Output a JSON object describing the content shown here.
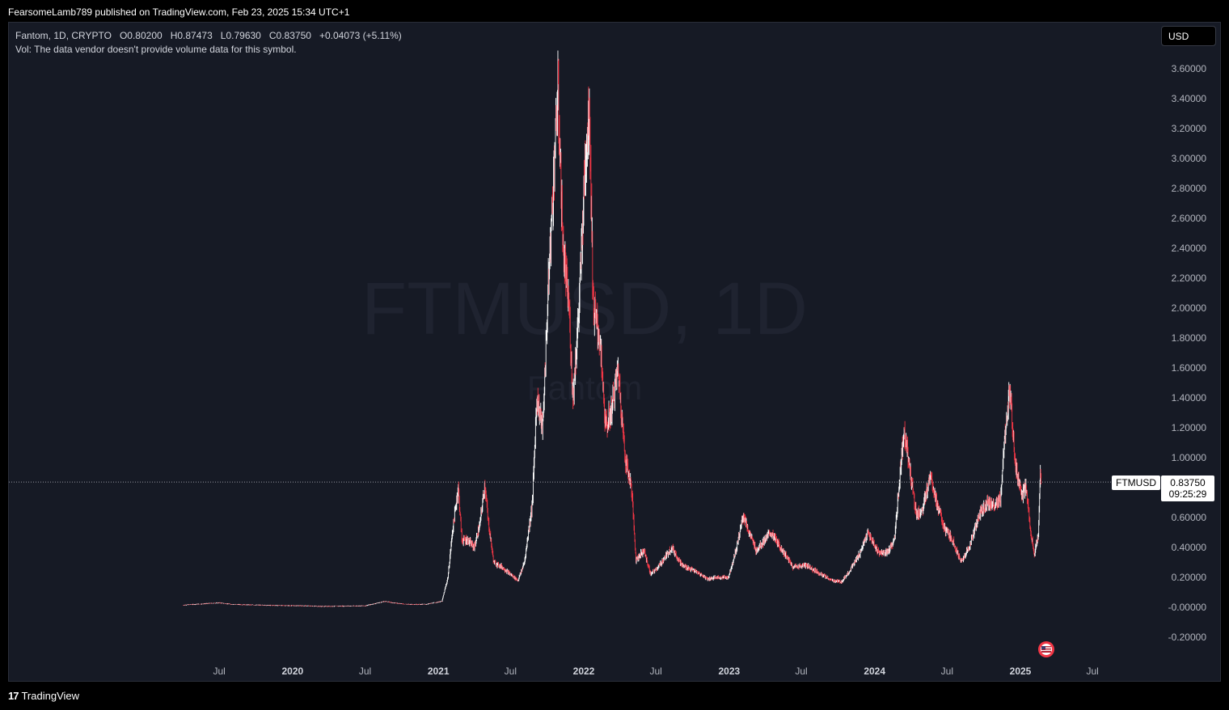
{
  "header": {
    "published": "FearsomeLamb789 published on TradingView.com, Feb 23, 2025 15:34 UTC+1"
  },
  "legend": {
    "symbol_line": "Fantom, 1D, CRYPTO",
    "open_label": "O",
    "open": "0.80200",
    "high_label": "H",
    "high": "0.87473",
    "low_label": "L",
    "low": "0.79630",
    "close_label": "C",
    "close": "0.83750",
    "change": "+0.04073 (+5.11%)",
    "vol_note": "Vol: The data vendor doesn't provide volume data for this symbol."
  },
  "currency_button": "USD",
  "watermark": {
    "line1": "FTMUSD, 1D",
    "line2": "Fantom"
  },
  "price_tag": {
    "symbol": "FTMUSD",
    "price": "0.83750",
    "countdown": "09:25:29"
  },
  "footer": {
    "brand": "TradingView",
    "logo_mark": "17"
  },
  "colors": {
    "background": "#161a25",
    "up": "#ffffff",
    "down": "#f23645",
    "axis_text": "#b2b5be",
    "price_line": "#9598a1"
  },
  "chart_data": {
    "type": "line",
    "title": "",
    "xlabel": "",
    "ylabel": "",
    "x_ticks": [
      {
        "date": "2019-07",
        "label": "Jul"
      },
      {
        "date": "2020-01",
        "label": "2020"
      },
      {
        "date": "2020-07",
        "label": "Jul"
      },
      {
        "date": "2021-01",
        "label": "2021"
      },
      {
        "date": "2021-07",
        "label": "Jul"
      },
      {
        "date": "2022-01",
        "label": "2022"
      },
      {
        "date": "2022-07",
        "label": "Jul"
      },
      {
        "date": "2023-01",
        "label": "2023"
      },
      {
        "date": "2023-07",
        "label": "Jul"
      },
      {
        "date": "2024-01",
        "label": "2024"
      },
      {
        "date": "2024-07",
        "label": "Jul"
      },
      {
        "date": "2025-01",
        "label": "2025"
      },
      {
        "date": "2025-07",
        "label": "Jul"
      }
    ],
    "y_ticks": [
      "3.60000",
      "3.40000",
      "3.20000",
      "3.00000",
      "2.80000",
      "2.60000",
      "2.40000",
      "2.20000",
      "2.00000",
      "1.80000",
      "1.60000",
      "1.40000",
      "1.20000",
      "1.00000",
      "0.60000",
      "0.40000",
      "0.20000",
      "-0.00000",
      "-0.20000"
    ],
    "ylim": [
      -0.3,
      3.7
    ],
    "last_price": 0.8375,
    "series": [
      {
        "values": [
          [
            "2019-04-01",
            0.015
          ],
          [
            "2019-05-01",
            0.02
          ],
          [
            "2019-06-01",
            0.025
          ],
          [
            "2019-07-01",
            0.03
          ],
          [
            "2019-08-01",
            0.02
          ],
          [
            "2019-10-01",
            0.015
          ],
          [
            "2019-12-01",
            0.012
          ],
          [
            "2020-02-01",
            0.01
          ],
          [
            "2020-03-15",
            0.006
          ],
          [
            "2020-05-01",
            0.008
          ],
          [
            "2020-07-01",
            0.01
          ],
          [
            "2020-08-20",
            0.04
          ],
          [
            "2020-09-10",
            0.03
          ],
          [
            "2020-10-15",
            0.02
          ],
          [
            "2020-12-01",
            0.02
          ],
          [
            "2021-01-10",
            0.04
          ],
          [
            "2021-01-25",
            0.2
          ],
          [
            "2021-02-05",
            0.5
          ],
          [
            "2021-02-20",
            0.8
          ],
          [
            "2021-03-01",
            0.45
          ],
          [
            "2021-03-15",
            0.45
          ],
          [
            "2021-04-01",
            0.4
          ],
          [
            "2021-04-15",
            0.55
          ],
          [
            "2021-04-28",
            0.83
          ],
          [
            "2021-05-05",
            0.6
          ],
          [
            "2021-05-20",
            0.3
          ],
          [
            "2021-06-10",
            0.27
          ],
          [
            "2021-07-01",
            0.22
          ],
          [
            "2021-07-20",
            0.18
          ],
          [
            "2021-08-05",
            0.3
          ],
          [
            "2021-08-25",
            0.7
          ],
          [
            "2021-09-05",
            1.4
          ],
          [
            "2021-09-20",
            1.2
          ],
          [
            "2021-10-05",
            2.2
          ],
          [
            "2021-10-28",
            3.46
          ],
          [
            "2021-11-10",
            2.4
          ],
          [
            "2021-11-25",
            2.0
          ],
          [
            "2021-12-05",
            1.4
          ],
          [
            "2021-12-20",
            2.0
          ],
          [
            "2022-01-05",
            3.0
          ],
          [
            "2022-01-15",
            3.35
          ],
          [
            "2022-01-25",
            2.0
          ],
          [
            "2022-02-10",
            1.8
          ],
          [
            "2022-02-25",
            1.2
          ],
          [
            "2022-03-10",
            1.3
          ],
          [
            "2022-03-28",
            1.6
          ],
          [
            "2022-04-15",
            1.0
          ],
          [
            "2022-05-01",
            0.8
          ],
          [
            "2022-05-12",
            0.32
          ],
          [
            "2022-06-01",
            0.38
          ],
          [
            "2022-06-18",
            0.22
          ],
          [
            "2022-07-10",
            0.28
          ],
          [
            "2022-08-10",
            0.4
          ],
          [
            "2022-09-05",
            0.28
          ],
          [
            "2022-10-01",
            0.25
          ],
          [
            "2022-11-09",
            0.19
          ],
          [
            "2022-12-01",
            0.2
          ],
          [
            "2022-12-30",
            0.2
          ],
          [
            "2023-01-20",
            0.4
          ],
          [
            "2023-02-05",
            0.62
          ],
          [
            "2023-02-20",
            0.5
          ],
          [
            "2023-03-10",
            0.38
          ],
          [
            "2023-04-15",
            0.5
          ],
          [
            "2023-05-20",
            0.36
          ],
          [
            "2023-06-10",
            0.27
          ],
          [
            "2023-07-15",
            0.28
          ],
          [
            "2023-08-20",
            0.22
          ],
          [
            "2023-09-15",
            0.18
          ],
          [
            "2023-10-10",
            0.17
          ],
          [
            "2023-11-01",
            0.25
          ],
          [
            "2023-11-25",
            0.36
          ],
          [
            "2023-12-15",
            0.5
          ],
          [
            "2024-01-10",
            0.37
          ],
          [
            "2024-02-01",
            0.36
          ],
          [
            "2024-02-20",
            0.45
          ],
          [
            "2024-03-05",
            0.9
          ],
          [
            "2024-03-15",
            1.2
          ],
          [
            "2024-03-28",
            0.95
          ],
          [
            "2024-04-15",
            0.62
          ],
          [
            "2024-05-01",
            0.65
          ],
          [
            "2024-05-20",
            0.9
          ],
          [
            "2024-06-05",
            0.7
          ],
          [
            "2024-06-25",
            0.52
          ],
          [
            "2024-07-15",
            0.45
          ],
          [
            "2024-08-05",
            0.3
          ],
          [
            "2024-08-25",
            0.4
          ],
          [
            "2024-09-20",
            0.62
          ],
          [
            "2024-10-10",
            0.7
          ],
          [
            "2024-10-30",
            0.68
          ],
          [
            "2024-11-12",
            0.72
          ],
          [
            "2024-11-25",
            1.2
          ],
          [
            "2024-12-05",
            1.44
          ],
          [
            "2024-12-20",
            0.95
          ],
          [
            "2025-01-05",
            0.75
          ],
          [
            "2025-01-15",
            0.8
          ],
          [
            "2025-01-25",
            0.55
          ],
          [
            "2025-02-05",
            0.35
          ],
          [
            "2025-02-15",
            0.48
          ],
          [
            "2025-02-20",
            0.9
          ],
          [
            "2025-02-23",
            0.8375
          ]
        ]
      }
    ]
  }
}
